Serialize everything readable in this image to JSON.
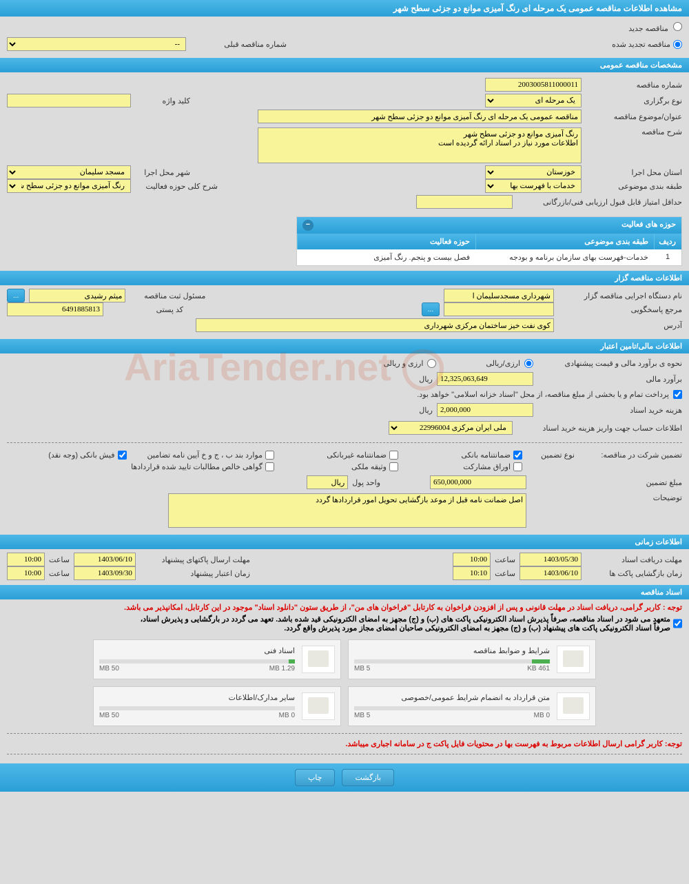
{
  "page_title": "مشاهده اطلاعات مناقصه عمومی یک مرحله ای رنگ آمیزی موانع دو جزئی سطح شهر",
  "radios": {
    "new_tender": "مناقصه جدید",
    "renewed_tender": "مناقصه تجدید شده"
  },
  "prev_tender_number_label": "شماره مناقصه قبلی",
  "prev_tender_number_value": "--",
  "sections": {
    "general": "مشخصات مناقصه عمومی",
    "bidder": "اطلاعات مناقصه گزار",
    "financial": "اطلاعات مالی/تامین اعتبار",
    "timing": "اطلاعات زمانی",
    "documents": "اسناد مناقصه"
  },
  "general": {
    "tender_number_label": "شماره مناقصه",
    "tender_number": "2003005811000011",
    "holding_type_label": "نوع برگزاری",
    "holding_type": "یک مرحله ای",
    "keyword_label": "کلید واژه",
    "keyword": "",
    "subject_label": "عنوان/موضوع مناقصه",
    "subject": "مناقصه عمومی یک مرحله ای رنگ آمیزی موانع دو جزئی سطح شهر",
    "desc_label": "شرح مناقصه",
    "desc": "رنگ آمیزی موانع دو جزئی سطح شهر\nاطلاعات مورد نیاز در اسناد ارائه گردیده است",
    "province_label": "استان محل اجرا",
    "province": "خوزستان",
    "city_label": "شهر محل اجرا",
    "city": "مسجد سلیمان",
    "subject_cat_label": "طبقه بندی موضوعی",
    "subject_cat": "خدمات با فهرست بها",
    "activity_desc_label": "شرح کلی حوزه فعالیت",
    "activity_desc": "رنگ آمیزی موانع دو جزئی سطح شهر",
    "min_score_label": "حداقل امتیاز قابل قبول ارزیابی فنی/بازرگانی",
    "min_score": ""
  },
  "activity_table": {
    "title": "حوزه های فعالیت",
    "col_row": "ردیف",
    "col_category": "طبقه بندی موضوعی",
    "col_activity": "حوزه فعالیت",
    "row_num": "1",
    "category": "خدمات-فهرست بهای سازمان برنامه و بودجه",
    "activity": "فصل بیست و پنجم. رنگ آمیزی"
  },
  "bidder": {
    "org_label": "نام دستگاه اجرایی مناقصه گزار",
    "org": "شهرداری مسجدسلیمان ا",
    "reg_officer_label": "مسئول ثبت مناقصه",
    "reg_officer": "میثم رشیدی",
    "response_ref_label": "مرجع پاسخگویی",
    "response_ref": "",
    "postal_code_label": "کد پستی",
    "postal_code": "6491885813",
    "address_label": "آدرس",
    "address": "کوی نفت خیز ساختمان مرکزی شهرداری"
  },
  "financial": {
    "estimate_method_label": "نحوه ی برآورد مالی و قیمت پیشنهادی",
    "opt_rial": "ارزی/ریالی",
    "opt_both": "ارزی و ریالی",
    "estimate_label": "برآورد مالی",
    "estimate_value": "12,325,063,649",
    "currency_rial": "ریال",
    "payment_note": "پرداخت تمام و یا بخشی از مبلغ مناقصه، از محل \"اسناد خزانه اسلامی\" خواهد بود.",
    "doc_fee_label": "هزینه خرید اسناد",
    "doc_fee": "2,000,000",
    "account_label": "اطلاعات حساب جهت واریز هزینه خرید اسناد",
    "account": "ملی ایران مرکزی 22996004",
    "participation_label": "تضمین شرکت در مناقصه:",
    "guarantee_type_label": "نوع تضمین",
    "chk_bank_guarantee": "ضمانتنامه بانکی",
    "chk_nonbank_guarantee": "ضمانتنامه غیربانکی",
    "chk_bond": "موارد بند ب ، ج و خ آیین نامه تضامین",
    "chk_bank_receipt": "فیش بانکی (وجه نقد)",
    "chk_securities": "اوراق مشارکت",
    "chk_property": "وثیقه ملکی",
    "chk_certified": "گواهی خالص مطالبات تایید شده قراردادها",
    "guarantee_amount_label": "مبلغ تضمین",
    "guarantee_amount": "650,000,000",
    "unit_label": "واحد پول",
    "unit": "ریال",
    "remarks_label": "توضیحات",
    "remarks": "اصل ضمانت نامه قبل از موعد بازگشایی تحویل امور قراردادها گردد"
  },
  "timing": {
    "receive_deadline_label": "مهلت دریافت اسناد",
    "receive_deadline_date": "1403/05/30",
    "receive_deadline_time": "10:00",
    "send_deadline_label": "مهلت ارسال پاکتهای پیشنهاد",
    "send_deadline_date": "1403/06/10",
    "send_deadline_time": "10:00",
    "opening_label": "زمان بازگشایی پاکت ها",
    "opening_date": "1403/06/10",
    "opening_time": "10:10",
    "validity_label": "زمان اعتبار پیشنهاد",
    "validity_date": "1403/09/30",
    "validity_time": "10:00",
    "time_label": "ساعت"
  },
  "documents": {
    "notice1": "توجه : کاربر گرامی، دریافت اسناد در مهلت قانونی و پس از افزودن فراخوان به کارتابل \"فراخوان های من\"، از طریق ستون \"دانلود اسناد\" موجود در این کارتابل، امکانپذیر می باشد.",
    "notice2a": "متعهد می شود در اسناد مناقصه، صرفاً پذیرش اسناد الکترونیکی پاکت های (ب) و (ج) مجهز به امضای الکترونیکی قید شده باشد. تعهد می گردد در بارگشایی و پذیرش اسناد،",
    "notice2b": "صرفاً اسناد الکترونیکی پاکت های پیشنهاد (ب) و (ج) مجهز به امضای الکترونیکی صاحبان امضای مجاز مورد پذیرش واقع گردد.",
    "notice3": "توجه: کاربر گرامی ارسال اطلاعات مربوط به فهرست بها در محتویات فایل پاکت ج در سامانه اجباری میباشد.",
    "files": [
      {
        "title": "شرایط و ضوابط مناقصه",
        "used": "461 KB",
        "total": "5 MB",
        "pct": 9
      },
      {
        "title": "اسناد فنی",
        "used": "1.29 MB",
        "total": "50 MB",
        "pct": 3
      },
      {
        "title": "متن قرارداد به انضمام شرایط عمومی/خصوصی",
        "used": "0 MB",
        "total": "5 MB",
        "pct": 0
      },
      {
        "title": "سایر مدارک/اطلاعات",
        "used": "0 MB",
        "total": "50 MB",
        "pct": 0
      }
    ]
  },
  "buttons": {
    "back": "بازگشت",
    "print": "چاپ"
  },
  "watermark": "AriaTender.net",
  "colors": {
    "header_bg": "#2a9fd6",
    "yellow": "#f7f49a",
    "page_bg": "#dcdcdc",
    "red": "#d00"
  }
}
